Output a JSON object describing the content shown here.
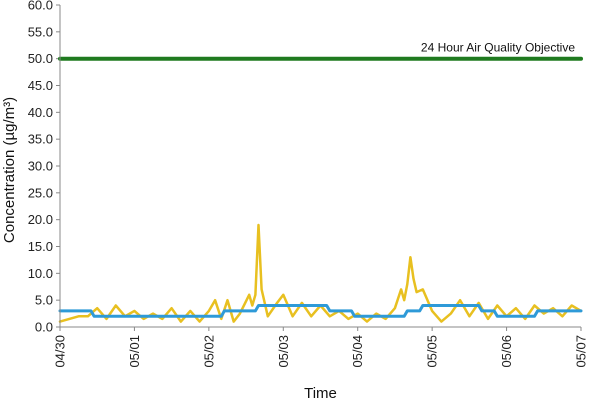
{
  "chart_data": {
    "type": "line",
    "title": "",
    "xlabel": "Time",
    "ylabel": "Concentration (µg/m³)",
    "ylim": [
      0,
      60
    ],
    "xlim": [
      "04/30",
      "05/07"
    ],
    "y_ticks": [
      "0.0",
      "5.0",
      "10.0",
      "15.0",
      "20.0",
      "25.0",
      "30.0",
      "35.0",
      "40.0",
      "45.0",
      "50.0",
      "55.0",
      "60.0"
    ],
    "x_ticks": [
      "04/30",
      "05/01",
      "05/02",
      "05/03",
      "05/04",
      "05/05",
      "05/06",
      "05/07"
    ],
    "grid": false,
    "legend": "none",
    "annotations": [
      {
        "text": "24 Hour Air Quality Objective",
        "y": 50
      }
    ],
    "series": [
      {
        "style": "objective line",
        "color": "#1f7a1f",
        "points": [
          [
            "04/30 00:00",
            50.0
          ],
          [
            "05/07 00:00",
            50.0
          ]
        ]
      },
      {
        "style": "hourly",
        "color": "#e8c020",
        "points": [
          [
            "04/30 00:00",
            1.0
          ],
          [
            "04/30 03:00",
            1.5
          ],
          [
            "04/30 06:00",
            2.0
          ],
          [
            "04/30 09:00",
            2.0
          ],
          [
            "04/30 12:00",
            3.5
          ],
          [
            "04/30 15:00",
            1.5
          ],
          [
            "04/30 18:00",
            4.0
          ],
          [
            "04/30 21:00",
            2.0
          ],
          [
            "05/01 00:00",
            3.0
          ],
          [
            "05/01 03:00",
            1.5
          ],
          [
            "05/01 06:00",
            2.5
          ],
          [
            "05/01 09:00",
            1.5
          ],
          [
            "05/01 12:00",
            3.5
          ],
          [
            "05/01 15:00",
            1.0
          ],
          [
            "05/01 18:00",
            3.0
          ],
          [
            "05/01 21:00",
            1.0
          ],
          [
            "05/02 00:00",
            3.0
          ],
          [
            "05/02 02:00",
            5.0
          ],
          [
            "05/02 04:00",
            1.5
          ],
          [
            "05/02 06:00",
            5.0
          ],
          [
            "05/02 08:00",
            1.0
          ],
          [
            "05/02 10:00",
            2.5
          ],
          [
            "05/02 13:00",
            6.0
          ],
          [
            "05/02 14:00",
            4.0
          ],
          [
            "05/02 15:00",
            6.0
          ],
          [
            "05/02 16:00",
            19.0
          ],
          [
            "05/02 17:00",
            7.0
          ],
          [
            "05/02 19:00",
            2.0
          ],
          [
            "05/02 22:00",
            4.5
          ],
          [
            "05/03 00:00",
            6.0
          ],
          [
            "05/03 03:00",
            2.0
          ],
          [
            "05/03 06:00",
            4.5
          ],
          [
            "05/03 09:00",
            2.0
          ],
          [
            "05/03 12:00",
            4.0
          ],
          [
            "05/03 15:00",
            2.0
          ],
          [
            "05/03 18:00",
            3.0
          ],
          [
            "05/03 21:00",
            1.5
          ],
          [
            "05/04 00:00",
            2.5
          ],
          [
            "05/04 03:00",
            1.0
          ],
          [
            "05/04 06:00",
            2.5
          ],
          [
            "05/04 09:00",
            1.5
          ],
          [
            "05/04 12:00",
            3.5
          ],
          [
            "05/04 14:00",
            7.0
          ],
          [
            "05/04 15:00",
            5.0
          ],
          [
            "05/04 16:00",
            8.0
          ],
          [
            "05/04 17:00",
            13.0
          ],
          [
            "05/04 18:00",
            9.0
          ],
          [
            "05/04 19:00",
            6.5
          ],
          [
            "05/04 21:00",
            7.0
          ],
          [
            "05/05 00:00",
            3.0
          ],
          [
            "05/05 03:00",
            1.0
          ],
          [
            "05/05 06:00",
            2.5
          ],
          [
            "05/05 09:00",
            5.0
          ],
          [
            "05/05 12:00",
            2.0
          ],
          [
            "05/05 15:00",
            4.5
          ],
          [
            "05/05 18:00",
            1.5
          ],
          [
            "05/05 21:00",
            4.0
          ],
          [
            "05/06 00:00",
            2.0
          ],
          [
            "05/06 03:00",
            3.5
          ],
          [
            "05/06 06:00",
            1.5
          ],
          [
            "05/06 09:00",
            4.0
          ],
          [
            "05/06 12:00",
            2.5
          ],
          [
            "05/06 15:00",
            3.5
          ],
          [
            "05/06 18:00",
            2.0
          ],
          [
            "05/06 21:00",
            4.0
          ],
          [
            "05/07 00:00",
            3.0
          ]
        ]
      },
      {
        "style": "24-hour running mean",
        "color": "#2e9ad8",
        "points": [
          [
            "04/30 00:00",
            3.0
          ],
          [
            "04/30 10:00",
            3.0
          ],
          [
            "04/30 11:00",
            2.0
          ],
          [
            "05/02 04:00",
            2.0
          ],
          [
            "05/02 05:00",
            3.0
          ],
          [
            "05/02 15:00",
            3.0
          ],
          [
            "05/02 16:00",
            4.0
          ],
          [
            "05/03 14:00",
            4.0
          ],
          [
            "05/03 15:00",
            3.0
          ],
          [
            "05/03 22:00",
            3.0
          ],
          [
            "05/03 23:00",
            2.0
          ],
          [
            "05/04 15:00",
            2.0
          ],
          [
            "05/04 16:00",
            3.0
          ],
          [
            "05/04 20:00",
            3.0
          ],
          [
            "05/04 21:00",
            4.0
          ],
          [
            "05/05 15:00",
            4.0
          ],
          [
            "05/05 16:00",
            3.0
          ],
          [
            "05/05 20:00",
            3.0
          ],
          [
            "05/05 21:00",
            2.0
          ],
          [
            "05/06 09:00",
            2.0
          ],
          [
            "05/06 10:00",
            3.0
          ],
          [
            "05/07 00:00",
            3.0
          ]
        ]
      }
    ]
  }
}
